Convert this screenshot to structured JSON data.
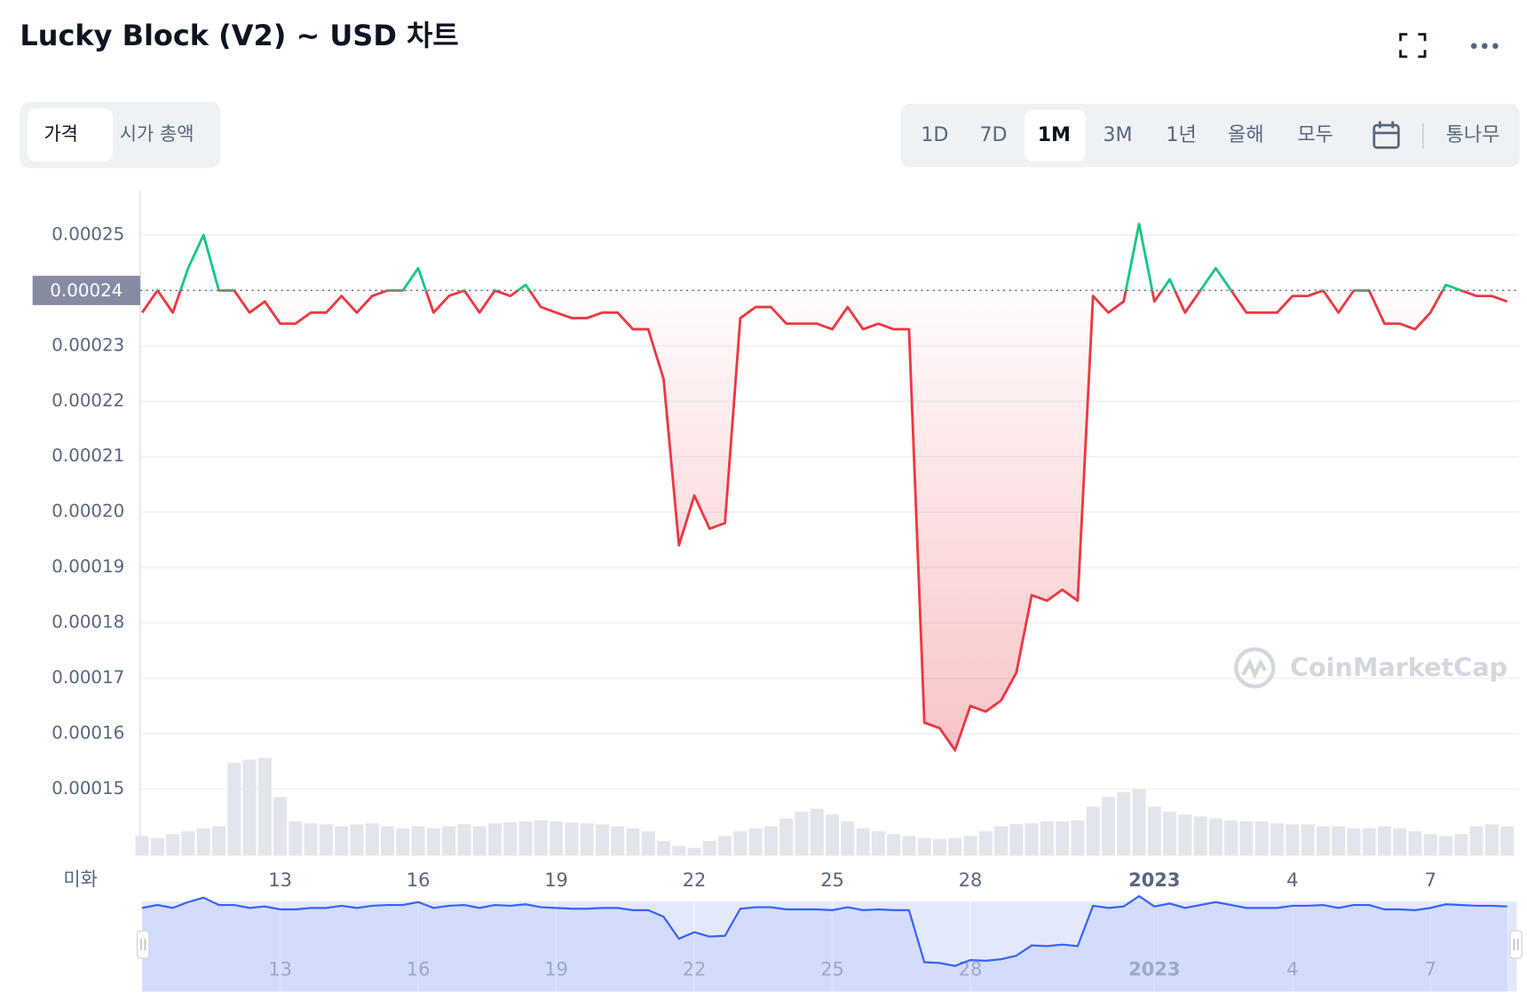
{
  "header": {
    "title": "Lucky Block (V2) ~ USD 차트",
    "tabs": [
      "가격",
      "시가 총액"
    ],
    "ranges": [
      "1D",
      "7D",
      "1M",
      "3M",
      "1년",
      "올해",
      "모두"
    ],
    "log_button": "통나무"
  },
  "chart_data": {
    "type": "line",
    "currency_label": "미화",
    "watermark": "CoinMarketCap",
    "categories": [
      null,
      null,
      null,
      null,
      null,
      null,
      null,
      null,
      null,
      "13",
      null,
      null,
      null,
      null,
      null,
      null,
      null,
      null,
      "16",
      null,
      null,
      null,
      null,
      null,
      null,
      null,
      null,
      "19",
      null,
      null,
      null,
      null,
      null,
      null,
      null,
      null,
      "22",
      null,
      null,
      null,
      null,
      null,
      null,
      null,
      null,
      "25",
      null,
      null,
      null,
      null,
      null,
      null,
      null,
      null,
      "28",
      null,
      null,
      null,
      null,
      null,
      null,
      null,
      null,
      null,
      null,
      null,
      "2023",
      null,
      null,
      null,
      null,
      null,
      null,
      null,
      null,
      "4",
      null,
      null,
      null,
      null,
      null,
      null,
      null,
      null,
      "7",
      null,
      null,
      null,
      null,
      null
    ],
    "values": [
      0.000236,
      0.00024,
      0.000236,
      0.000244,
      0.00025,
      0.00024,
      0.00024,
      0.000236,
      0.000238,
      0.000234,
      0.000234,
      0.000236,
      0.000236,
      0.000239,
      0.000236,
      0.000239,
      0.00024,
      0.00024,
      0.000244,
      0.000236,
      0.000239,
      0.00024,
      0.000236,
      0.00024,
      0.000239,
      0.000241,
      0.000237,
      0.000236,
      0.000235,
      0.000235,
      0.000236,
      0.000236,
      0.000233,
      0.000233,
      0.000224,
      0.000194,
      0.000203,
      0.000197,
      0.000198,
      0.000235,
      0.000237,
      0.000237,
      0.000234,
      0.000234,
      0.000234,
      0.000233,
      0.000237,
      0.000233,
      0.000234,
      0.000233,
      0.000233,
      0.000162,
      0.000161,
      0.000157,
      0.000165,
      0.000164,
      0.000166,
      0.000171,
      0.000185,
      0.000184,
      0.000186,
      0.000184,
      0.000239,
      0.000236,
      0.000238,
      0.000252,
      0.000238,
      0.000242,
      0.000236,
      0.00024,
      0.000244,
      0.00024,
      0.000236,
      0.000236,
      0.000236,
      0.000239,
      0.000239,
      0.00024,
      0.000236,
      0.00024,
      0.00024,
      0.000234,
      0.000234,
      0.000233,
      0.000236,
      0.000241,
      0.00024,
      0.000239,
      0.000239,
      0.000238
    ],
    "volume": [
      20,
      18,
      22,
      25,
      28,
      30,
      95,
      98,
      100,
      60,
      35,
      33,
      32,
      30,
      32,
      33,
      30,
      28,
      30,
      28,
      30,
      32,
      30,
      33,
      34,
      35,
      36,
      35,
      34,
      33,
      32,
      30,
      28,
      25,
      15,
      10,
      8,
      15,
      20,
      25,
      28,
      30,
      38,
      45,
      48,
      42,
      35,
      28,
      25,
      22,
      20,
      18,
      17,
      18,
      20,
      25,
      30,
      32,
      33,
      35,
      35,
      36,
      50,
      60,
      65,
      68,
      50,
      45,
      42,
      40,
      38,
      36,
      35,
      35,
      33,
      32,
      32,
      30,
      30,
      28,
      28,
      30,
      28,
      25,
      22,
      20,
      22,
      30,
      32,
      30
    ],
    "baseline": 0.00024,
    "up_color": "#16c784",
    "down_color": "#ea3943",
    "navigator_color": "#3861fb",
    "ylim": [
      0.000138,
      0.000258
    ],
    "yticks": [
      0.00015,
      0.00016,
      0.00017,
      0.00018,
      0.00019,
      {
        "value": 0.0002,
        "label": "0.00020"
      },
      0.00021,
      0.00022,
      0.00023,
      0.00025
    ],
    "grid": true
  }
}
